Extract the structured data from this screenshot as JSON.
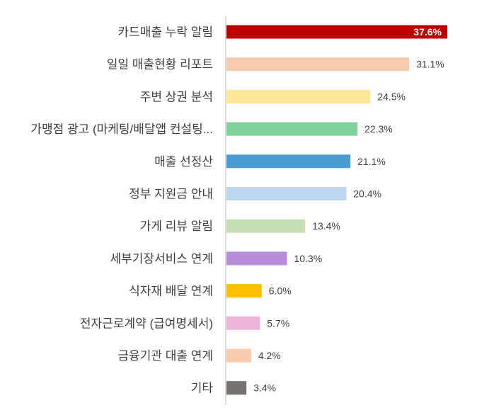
{
  "chart_data": {
    "type": "bar",
    "orientation": "horizontal",
    "title": "",
    "xlabel": "",
    "ylabel": "",
    "xlim": [
      0,
      40
    ],
    "grid": false,
    "legend": "none",
    "value_format": "percent",
    "categories": [
      "카드매출 누락 알림",
      "일일 매출현황 리포트",
      "주변 상권 분석",
      "가맹점 광고 (마케팅/배달앱 컨설팅...",
      "매출 선정산",
      "정부 지원금 안내",
      "가게 리뷰 알림",
      "세부기장서비스 연계",
      "식자재 배달 연계",
      "전자근로계약 (급여명세서)",
      "금융기관 대출 연계",
      "기타"
    ],
    "values": [
      37.6,
      31.1,
      24.5,
      22.3,
      21.1,
      20.4,
      13.4,
      10.3,
      6.0,
      5.7,
      4.2,
      3.4
    ],
    "data_labels": [
      "37.6%",
      "31.1%",
      "24.5%",
      "22.3%",
      "21.1%",
      "20.4%",
      "13.4%",
      "10.3%",
      "6.0%",
      "5.7%",
      "4.2%",
      "3.4%"
    ],
    "colors": [
      "#C00000",
      "#F8CBAD",
      "#FFE699",
      "#7FD39A",
      "#4A9BD1",
      "#BDD7EE",
      "#C5E0B4",
      "#B88CD9",
      "#FFC000",
      "#F0B3DC",
      "#F8CBAD",
      "#767171"
    ],
    "highlight_index": 0
  }
}
